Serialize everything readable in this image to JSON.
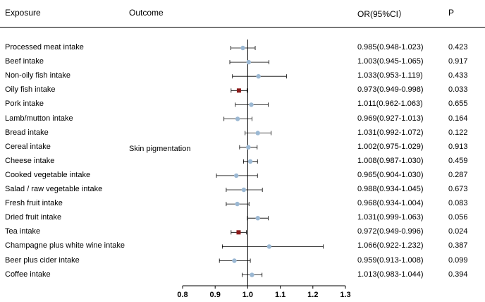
{
  "headers": {
    "exposure": "Exposure",
    "outcome": "Outcome",
    "or_ci": "OR(95%CI）",
    "p": "P"
  },
  "outcome_label": "Skin pigmentation",
  "colors": {
    "nonsignificant": "#9bb8d3",
    "significant": "#8b1a1a",
    "reference_line": "#000000"
  },
  "chart_data": {
    "type": "forest",
    "title": "",
    "xlabel": "",
    "xlim": [
      0.8,
      1.3
    ],
    "xticks": [
      "0.8",
      "0.9",
      "1.0",
      "1.1",
      "1.2",
      "1.3"
    ],
    "reference_value": 1.0,
    "rows": [
      {
        "label": "Processed meat intake",
        "or": 0.985,
        "lo": 0.948,
        "hi": 1.023,
        "ci_text": "0.985(0.948-1.023)",
        "p": "0.423",
        "significant": false
      },
      {
        "label": "Beef intake",
        "or": 1.003,
        "lo": 0.945,
        "hi": 1.065,
        "ci_text": "1.003(0.945-1.065)",
        "p": "0.917",
        "significant": false
      },
      {
        "label": "Non-oily fish intake",
        "or": 1.033,
        "lo": 0.953,
        "hi": 1.119,
        "ci_text": "1.033(0.953-1.119)",
        "p": "0.433",
        "significant": false
      },
      {
        "label": "Oily fish intake",
        "or": 0.973,
        "lo": 0.949,
        "hi": 0.998,
        "ci_text": "0.973(0.949-0.998)",
        "p": "0.033",
        "significant": true
      },
      {
        "label": "Pork intake",
        "or": 1.011,
        "lo": 0.962,
        "hi": 1.063,
        "ci_text": "1.011(0.962-1.063)",
        "p": "0.655",
        "significant": false
      },
      {
        "label": "Lamb/mutton intake",
        "or": 0.969,
        "lo": 0.927,
        "hi": 1.013,
        "ci_text": "0.969(0.927-1.013)",
        "p": "0.164",
        "significant": false
      },
      {
        "label": "Bread intake",
        "or": 1.031,
        "lo": 0.992,
        "hi": 1.072,
        "ci_text": "1.031(0.992-1.072)",
        "p": "0.122",
        "significant": false
      },
      {
        "label": "Cereal intake",
        "or": 1.002,
        "lo": 0.975,
        "hi": 1.029,
        "ci_text": "1.002(0.975-1.029)",
        "p": "0.913",
        "significant": false
      },
      {
        "label": "Cheese intake",
        "or": 1.008,
        "lo": 0.987,
        "hi": 1.03,
        "ci_text": "1.008(0.987-1.030)",
        "p": "0.459",
        "significant": false
      },
      {
        "label": "Cooked vegetable intake",
        "or": 0.965,
        "lo": 0.904,
        "hi": 1.03,
        "ci_text": "0.965(0.904-1.030)",
        "p": "0.287",
        "significant": false
      },
      {
        "label": "Salad / raw vegetable intake",
        "or": 0.988,
        "lo": 0.934,
        "hi": 1.045,
        "ci_text": "0.988(0.934-1.045)",
        "p": "0.673",
        "significant": false
      },
      {
        "label": "Fresh fruit intake",
        "or": 0.968,
        "lo": 0.934,
        "hi": 1.004,
        "ci_text": "0.968(0.934-1.004)",
        "p": "0.083",
        "significant": false
      },
      {
        "label": "Dried fruit intake",
        "or": 1.031,
        "lo": 0.999,
        "hi": 1.063,
        "ci_text": "1.031(0.999-1.063)",
        "p": "0.056",
        "significant": false
      },
      {
        "label": "Tea intake",
        "or": 0.972,
        "lo": 0.949,
        "hi": 0.996,
        "ci_text": "0.972(0.949-0.996)",
        "p": "0.024",
        "significant": true
      },
      {
        "label": "Champagne plus white wine intake",
        "or": 1.066,
        "lo": 0.922,
        "hi": 1.232,
        "ci_text": "1.066(0.922-1.232)",
        "p": "0.387",
        "significant": false
      },
      {
        "label": "Beer plus cider intake",
        "or": 0.959,
        "lo": 0.913,
        "hi": 1.008,
        "ci_text": "0.959(0.913-1.008)",
        "p": "0.099",
        "significant": false
      },
      {
        "label": "Coffee intake",
        "or": 1.013,
        "lo": 0.983,
        "hi": 1.044,
        "ci_text": "1.013(0.983-1.044)",
        "p": "0.394",
        "significant": false
      }
    ]
  }
}
